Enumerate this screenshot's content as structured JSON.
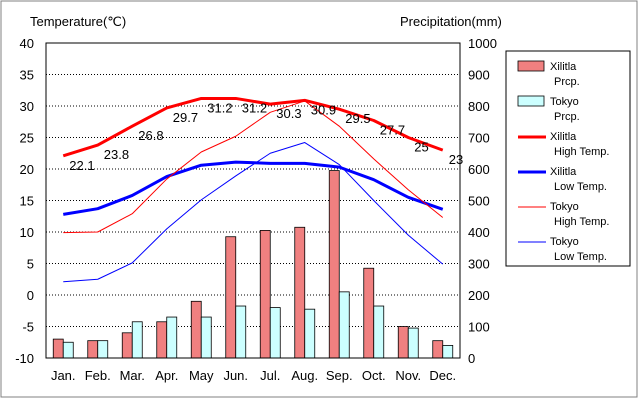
{
  "chart_data": {
    "type": "bar",
    "categories": [
      "Jan.",
      "Feb.",
      "Mar.",
      "Apr.",
      "May",
      "Jun.",
      "Jul.",
      "Aug.",
      "Sep.",
      "Oct.",
      "Nov.",
      "Dec."
    ],
    "ylabel": "Temperature(℃)",
    "y2label": "Precipitation(mm)",
    "ylim": [
      -10,
      40
    ],
    "y2lim": [
      0,
      1000
    ],
    "yticks": [
      40,
      35,
      30,
      25,
      20,
      15,
      10,
      5,
      0,
      -5,
      -10
    ],
    "y2ticks": [
      1000,
      900,
      800,
      700,
      600,
      500,
      400,
      300,
      200,
      100,
      0
    ],
    "grid": true,
    "legend_position": "right",
    "series": [
      {
        "name": "Xilitla Prcp.",
        "kind": "bar",
        "axis": "right",
        "color": "#f08080",
        "values": [
          60,
          55,
          80,
          115,
          180,
          385,
          405,
          415,
          595,
          285,
          100,
          55
        ]
      },
      {
        "name": "Tokyo Prcp.",
        "kind": "bar",
        "axis": "right",
        "color": "#ccffff",
        "values": [
          50,
          55,
          115,
          130,
          130,
          165,
          160,
          155,
          210,
          165,
          95,
          40
        ]
      },
      {
        "name": "Xilitla High Temp.",
        "kind": "line",
        "axis": "left",
        "color": "#ff0000",
        "width": "thick",
        "values": [
          22.1,
          23.8,
          26.8,
          29.7,
          31.2,
          31.2,
          30.3,
          30.9,
          29.5,
          27.7,
          25,
          23
        ],
        "data_labels": [
          "22.1",
          "23.8",
          "26.8",
          "29.7",
          "31.2",
          "31.2",
          "30.3",
          "30.9",
          "29.5",
          "27.7",
          "25",
          "23"
        ]
      },
      {
        "name": "Xilitla Low Temp.",
        "kind": "line",
        "axis": "left",
        "color": "#0000ff",
        "width": "thick",
        "values": [
          12.8,
          13.7,
          15.8,
          18.8,
          20.6,
          21.1,
          20.9,
          20.9,
          20.3,
          18.3,
          15.5,
          13.6
        ]
      },
      {
        "name": "Tokyo High Temp.",
        "kind": "line",
        "axis": "left",
        "color": "#ff0000",
        "width": "thin",
        "values": [
          9.9,
          10.0,
          12.9,
          18.4,
          22.7,
          25.2,
          29.0,
          30.8,
          26.8,
          21.6,
          16.7,
          12.3
        ]
      },
      {
        "name": "Tokyo Low Temp.",
        "kind": "line",
        "axis": "left",
        "color": "#0000ff",
        "width": "thin",
        "values": [
          2.1,
          2.5,
          5.1,
          10.5,
          15.1,
          18.9,
          22.5,
          24.2,
          20.7,
          15.0,
          9.5,
          4.9
        ]
      }
    ],
    "legend": [
      {
        "line1": "Xilitla",
        "line2": "Prcp.",
        "swatch": "bar",
        "color": "#f08080"
      },
      {
        "line1": "Tokyo",
        "line2": "Prcp.",
        "swatch": "bar",
        "color": "#ccffff"
      },
      {
        "line1": "Xilitla",
        "line2": "High Temp.",
        "swatch": "thick-line",
        "color": "#ff0000"
      },
      {
        "line1": "Xilitla",
        "line2": "Low Temp.",
        "swatch": "thick-line",
        "color": "#0000ff"
      },
      {
        "line1": "Tokyo",
        "line2": "High Temp.",
        "swatch": "thin-line",
        "color": "#ff0000"
      },
      {
        "line1": "Tokyo",
        "line2": "Low Temp.",
        "swatch": "thin-line",
        "color": "#0000ff"
      }
    ]
  }
}
